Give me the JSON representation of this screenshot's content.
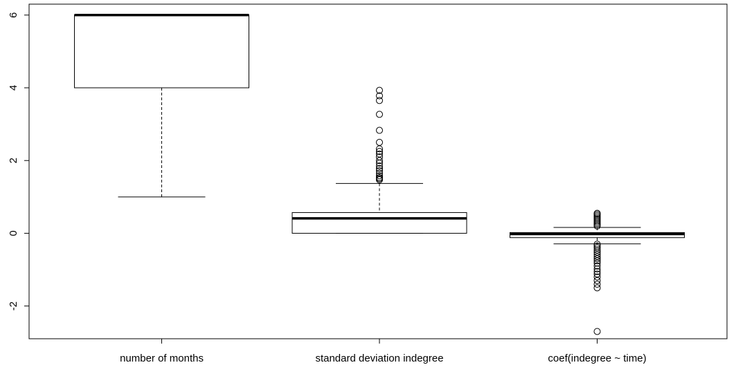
{
  "chart_data": {
    "type": "boxplot",
    "title": "",
    "xlabel": "",
    "ylabel": "",
    "ylim": [
      -2.9,
      6.3
    ],
    "yticks": [
      -2,
      0,
      2,
      4,
      6
    ],
    "ytick_labels": [
      "-2",
      "0",
      "2",
      "4",
      "6"
    ],
    "categories": [
      "number of months",
      "standard deviation indegree",
      "coef(indegree ~ time)"
    ],
    "boxes": [
      {
        "label": "number of months",
        "whisker_low": 1.0,
        "q1": 4.0,
        "median": 6.0,
        "q3": 6.0,
        "whisker_high": 6.0,
        "outliers": []
      },
      {
        "label": "standard deviation indegree",
        "whisker_low": 0.0,
        "q1": 0.0,
        "median": 0.41,
        "q3": 0.57,
        "whisker_high": 1.37,
        "outliers": [
          1.47,
          1.5,
          1.53,
          1.58,
          1.65,
          1.72,
          1.78,
          1.85,
          1.93,
          2.0,
          2.1,
          2.18,
          2.25,
          2.32,
          2.5,
          2.83,
          3.27,
          3.65,
          3.78,
          3.93
        ]
      },
      {
        "label": "coef(indegree ~ time)",
        "whisker_low": -0.29,
        "q1": -0.12,
        "median": -0.02,
        "q3": 0.02,
        "whisker_high": 0.16,
        "outliers": [
          0.2,
          0.24,
          0.28,
          0.32,
          0.36,
          0.4,
          0.44,
          0.48,
          0.52,
          0.55,
          -0.3,
          -0.35,
          -0.4,
          -0.46,
          -0.52,
          -0.58,
          -0.64,
          -0.7,
          -0.76,
          -0.82,
          -0.9,
          -0.98,
          -1.05,
          -1.12,
          -1.2,
          -1.3,
          -1.4,
          -1.5,
          -2.7
        ]
      }
    ],
    "grid": false,
    "legend": "none"
  }
}
